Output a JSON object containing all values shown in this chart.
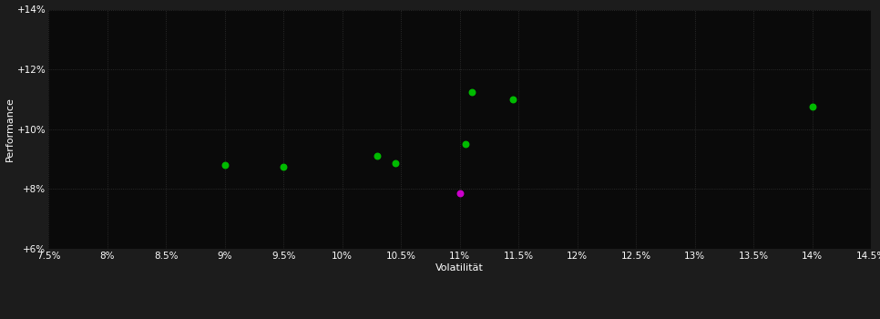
{
  "background_color": "#1c1c1c",
  "plot_bg_color": "#0a0a0a",
  "grid_color": "#333333",
  "text_color": "#ffffff",
  "xlabel": "Volatilität",
  "ylabel": "Performance",
  "xlim": [
    7.5,
    14.5
  ],
  "ylim": [
    6.0,
    14.0
  ],
  "xticks": [
    7.5,
    8.0,
    8.5,
    9.0,
    9.5,
    10.0,
    10.5,
    11.0,
    11.5,
    12.0,
    12.5,
    13.0,
    13.5,
    14.0,
    14.5
  ],
  "yticks": [
    6.0,
    8.0,
    10.0,
    12.0,
    14.0
  ],
  "green_points": [
    [
      9.0,
      8.8
    ],
    [
      9.5,
      8.75
    ],
    [
      10.3,
      9.1
    ],
    [
      10.45,
      8.85
    ],
    [
      11.05,
      9.5
    ],
    [
      11.1,
      11.25
    ],
    [
      11.45,
      11.0
    ],
    [
      14.0,
      10.75
    ]
  ],
  "magenta_points": [
    [
      11.0,
      7.85
    ]
  ],
  "green_color": "#00bb00",
  "magenta_color": "#cc00cc",
  "marker_size": 22
}
